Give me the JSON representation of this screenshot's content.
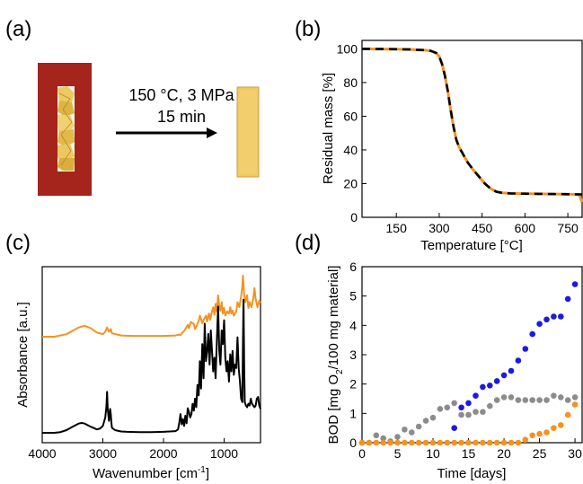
{
  "panel_labels": {
    "a": "(a)",
    "b": "(b)",
    "c": "(c)",
    "d": "(d)"
  },
  "panel_a": {
    "condition_line1": "150 °C, 3 MPa",
    "condition_line2": "15 min",
    "colors": {
      "frame": "#a5241b",
      "film": "#e9c75a",
      "pressed": "#f0c860"
    }
  },
  "chart_data": [
    {
      "panel": "b",
      "type": "line",
      "xlabel": "Temperature [°C]",
      "ylabel": "Residual mass [%]",
      "xlim": [
        30,
        800
      ],
      "ylim": [
        0,
        105
      ],
      "xticks": [
        150,
        300,
        450,
        600,
        750
      ],
      "yticks": [
        0,
        20,
        40,
        60,
        80,
        100
      ],
      "series": [
        {
          "color": "#f39222",
          "style": "solid",
          "x": [
            30,
            100,
            150,
            200,
            250,
            270,
            290,
            300,
            310,
            320,
            330,
            340,
            350,
            360,
            370,
            380,
            390,
            400,
            420,
            440,
            460,
            480,
            500,
            520,
            550,
            600,
            650,
            700,
            750,
            790,
            800
          ],
          "y": [
            100,
            99.9,
            99.8,
            99.6,
            99.2,
            98.8,
            97.5,
            95.5,
            91,
            84,
            75,
            64,
            54,
            46,
            41.5,
            38.5,
            35.5,
            32.5,
            28,
            24,
            20,
            17,
            15.2,
            14.5,
            14.2,
            14,
            13.9,
            13.8,
            13.7,
            13.6,
            9
          ]
        },
        {
          "color": "#000000",
          "style": "dashed",
          "x": [
            30,
            100,
            150,
            200,
            250,
            270,
            290,
            300,
            310,
            320,
            330,
            340,
            350,
            360,
            370,
            380,
            390,
            400,
            420,
            440,
            460,
            480,
            500,
            520,
            550,
            600,
            650,
            700,
            750,
            800
          ],
          "y": [
            100,
            99.9,
            99.8,
            99.6,
            99.2,
            98.8,
            97.5,
            95.5,
            91,
            84,
            75,
            64,
            54,
            46,
            41.5,
            38.5,
            35.5,
            32.5,
            28,
            24,
            20,
            17,
            15.2,
            14.5,
            14.2,
            14,
            13.9,
            13.8,
            13.7,
            13.6
          ]
        }
      ]
    },
    {
      "panel": "c",
      "type": "line",
      "xlabel": "Wavenumber [cm",
      "xlabel_sup": "-1",
      "xlabel_end": "]",
      "ylabel": "Absorbance [a.u.]",
      "xlim": [
        4000,
        400
      ],
      "xticks": [
        4000,
        3000,
        2000,
        1000
      ],
      "series": [
        {
          "color": "#f39222",
          "offset": 1.0,
          "x": [
            4000,
            3800,
            3600,
            3500,
            3400,
            3300,
            3200,
            3100,
            3000,
            2960,
            2930,
            2900,
            2870,
            2850,
            2700,
            2500,
            2200,
            2000,
            1800,
            1750,
            1720,
            1700,
            1650,
            1600,
            1580,
            1550,
            1500,
            1480,
            1450,
            1420,
            1400,
            1380,
            1360,
            1340,
            1300,
            1280,
            1250,
            1230,
            1200,
            1180,
            1160,
            1140,
            1120,
            1100,
            1080,
            1060,
            1040,
            1020,
            1000,
            980,
            950,
            920,
            900,
            880,
            860,
            840,
            800,
            780,
            750,
            720,
            700,
            690,
            670,
            650,
            620,
            600,
            580,
            550,
            520,
            500,
            480,
            450,
            420,
            400
          ],
          "y": [
            0,
            0,
            0.06,
            0.14,
            0.22,
            0.26,
            0.2,
            0.1,
            0.06,
            0.12,
            0.22,
            0.12,
            0.18,
            0.08,
            0.03,
            0.02,
            0.02,
            0.02,
            0.03,
            0.05,
            0.04,
            0.08,
            0.15,
            0.28,
            0.2,
            0.35,
            0.3,
            0.18,
            0.26,
            0.38,
            0.5,
            0.42,
            0.32,
            0.4,
            0.5,
            0.36,
            0.55,
            0.4,
            0.6,
            0.7,
            0.52,
            0.78,
            0.6,
            0.98,
            0.72,
            0.62,
            0.82,
            0.55,
            0.68,
            0.5,
            0.6,
            0.55,
            0.7,
            0.55,
            0.62,
            0.5,
            0.6,
            0.82,
            0.7,
            0.95,
            1.2,
            1.45,
            1.0,
            0.82,
            0.98,
            0.68,
            0.82,
            0.7,
            0.9,
            1.15,
            0.9,
            0.7,
            0.85,
            0.8
          ]
        },
        {
          "color": "#000000",
          "offset": 0,
          "x": [
            4000,
            3800,
            3700,
            3600,
            3500,
            3400,
            3350,
            3300,
            3200,
            3100,
            3050,
            3000,
            2960,
            2940,
            2930,
            2920,
            2900,
            2880,
            2870,
            2860,
            2850,
            2800,
            2700,
            2600,
            2400,
            2200,
            2000,
            1800,
            1760,
            1740,
            1720,
            1700,
            1680,
            1660,
            1640,
            1620,
            1600,
            1580,
            1560,
            1540,
            1520,
            1500,
            1480,
            1460,
            1440,
            1420,
            1400,
            1380,
            1360,
            1340,
            1320,
            1300,
            1280,
            1260,
            1240,
            1220,
            1200,
            1180,
            1160,
            1140,
            1120,
            1100,
            1080,
            1060,
            1040,
            1020,
            1000,
            980,
            960,
            940,
            920,
            900,
            880,
            860,
            840,
            820,
            800,
            780,
            760,
            740,
            720,
            700,
            690,
            680,
            670,
            660,
            640,
            620,
            600,
            580,
            560,
            540,
            520,
            500,
            480,
            460,
            440,
            420,
            400
          ],
          "y": [
            0,
            0,
            0.02,
            0.08,
            0.18,
            0.27,
            0.29,
            0.27,
            0.18,
            0.1,
            0.12,
            0.2,
            0.45,
            0.78,
            1.2,
            0.7,
            0.35,
            0.7,
            0.55,
            0.3,
            0.15,
            0.08,
            0.04,
            0.03,
            0.02,
            0.02,
            0.03,
            0.05,
            0.1,
            0.3,
            0.55,
            0.25,
            0.4,
            0.2,
            0.5,
            0.28,
            0.72,
            0.6,
            0.45,
            0.55,
            0.85,
            0.65,
            1.0,
            0.75,
            1.4,
            1.1,
            2.1,
            1.3,
            2.6,
            1.6,
            3.2,
            2.1,
            2.4,
            2.9,
            2.0,
            3.0,
            2.4,
            1.8,
            2.2,
            1.6,
            2.7,
            3.7,
            2.4,
            2.0,
            3.0,
            2.6,
            3.3,
            2.2,
            1.8,
            2.1,
            1.5,
            2.3,
            1.8,
            2.4,
            1.7,
            2.0,
            1.9,
            2.8,
            1.9,
            1.5,
            1.0,
            0.9,
            2.5,
            3.9,
            2.0,
            0.9,
            0.8,
            0.75,
            0.85,
            0.8,
            1.0,
            0.85,
            0.8,
            0.75,
            0.8,
            1.0,
            1.05,
            0.8,
            0.7
          ]
        }
      ]
    },
    {
      "panel": "d",
      "type": "scatter",
      "xlabel": "Time [days]",
      "ylabel_parts": [
        "BOD [mg O",
        "2",
        "/100 mg material]"
      ],
      "xlim": [
        0,
        31
      ],
      "ylim": [
        0,
        6
      ],
      "xticks": [
        0,
        5,
        10,
        15,
        20,
        25,
        30
      ],
      "yticks": [
        0,
        1,
        2,
        3,
        4,
        5,
        6
      ],
      "series": [
        {
          "color": "#1a1ae0",
          "x": [
            13,
            14,
            15,
            16,
            17,
            18,
            19,
            20,
            21,
            22,
            23,
            24,
            25,
            26,
            27,
            28,
            29,
            30
          ],
          "y": [
            0.5,
            1.2,
            1.35,
            1.6,
            1.9,
            1.95,
            2.1,
            2.3,
            2.45,
            2.8,
            3.2,
            3.7,
            4.05,
            4.2,
            4.3,
            4.3,
            4.9,
            5.4
          ]
        },
        {
          "color": "#8c8c8c",
          "x": [
            0,
            1,
            2,
            3,
            4,
            5,
            6,
            7,
            8,
            9,
            10,
            11,
            12,
            13,
            14,
            15,
            16,
            17,
            18,
            19,
            20,
            21,
            22,
            23,
            24,
            25,
            26,
            27,
            28,
            29,
            30
          ],
          "y": [
            0,
            0,
            0.25,
            0.15,
            0.05,
            0.2,
            0.45,
            0.35,
            0.55,
            0.75,
            0.85,
            1.15,
            1.2,
            1.35,
            0.95,
            0.95,
            1.05,
            1.05,
            1.25,
            1.45,
            1.55,
            1.55,
            1.45,
            1.45,
            1.45,
            1.45,
            1.45,
            1.6,
            1.55,
            1.45,
            1.55
          ]
        },
        {
          "color": "#f39222",
          "x": [
            0,
            1,
            2,
            3,
            4,
            5,
            6,
            7,
            8,
            9,
            10,
            11,
            12,
            13,
            14,
            15,
            16,
            17,
            18,
            19,
            20,
            21,
            22,
            23,
            24,
            25,
            26,
            27,
            28,
            29,
            30
          ],
          "y": [
            0,
            0,
            0,
            0,
            0,
            0,
            0,
            0,
            0,
            0,
            0,
            0,
            0,
            0,
            0,
            0,
            0,
            0,
            0,
            0,
            0,
            0,
            0,
            0.1,
            0.25,
            0.3,
            0.35,
            0.5,
            0.6,
            0.95,
            1.3
          ]
        }
      ]
    }
  ]
}
